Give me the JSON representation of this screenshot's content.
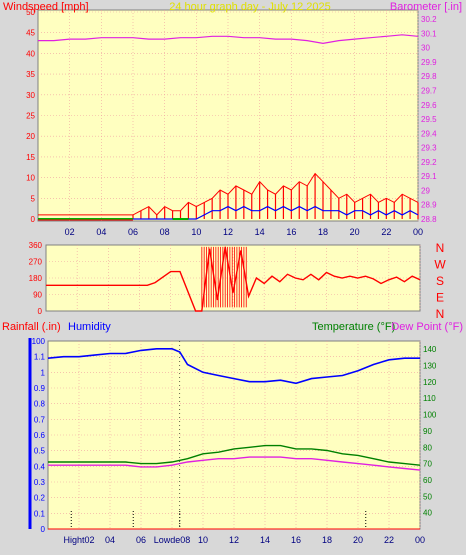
{
  "colors": {
    "frame": "#d8d8d8",
    "plot_bg": "#ffffc0",
    "grid": "#f0a0a0",
    "wind": "#ff0000",
    "gust": "#ff0000",
    "wind_avg": "#0000ff",
    "calm": "#00b000",
    "barometer": "#e020e0",
    "direction": "#ff0000",
    "humidity": "#0000ff",
    "temperature": "#008000",
    "dewpoint": "#e020e0",
    "rain": "#ff0000",
    "title": "#e0e000",
    "label_red": "#ff0000",
    "label_green": "#008000",
    "label_magenta": "#e020e0",
    "label_blue": "#0000ff",
    "tick_text": "#000080"
  },
  "chart_data": [
    {
      "type": "line",
      "id": "wind_barometer",
      "title": "24 hour graph day - July 12 2025",
      "ylabel_left": "Windspeed [mph]",
      "ylabel_right": "Barometer [.in]",
      "y_left_ticks": [
        "0",
        "5",
        "10",
        "15",
        "20",
        "25",
        "30",
        "35",
        "40",
        "45",
        "50"
      ],
      "y_right_ticks": [
        "28.8",
        "28.9",
        "29",
        "29.1",
        "29.2",
        "29.3",
        "29.4",
        "29.5",
        "29.6",
        "29.7",
        "29.8",
        "29.9",
        "30",
        "30.1",
        "30.2"
      ],
      "ylim_left": [
        0,
        50
      ],
      "ylim_right": [
        28.8,
        30.25
      ],
      "x_ticks": [
        "02",
        "04",
        "06",
        "08",
        "10",
        "12",
        "14",
        "16",
        "18",
        "20",
        "22",
        "00"
      ],
      "series": [
        {
          "key": "barometer",
          "axis": "right",
          "x": [
            0,
            1,
            2,
            3,
            4,
            5,
            6,
            7,
            8,
            9,
            10,
            11,
            12,
            13,
            14,
            15,
            16,
            17,
            18,
            19,
            20,
            21,
            22,
            23,
            24
          ],
          "values": [
            30.05,
            30.05,
            30.06,
            30.06,
            30.07,
            30.07,
            30.07,
            30.06,
            30.06,
            30.07,
            30.07,
            30.08,
            30.08,
            30.07,
            30.07,
            30.06,
            30.06,
            30.05,
            30.03,
            30.05,
            30.06,
            30.07,
            30.08,
            30.09,
            30.08
          ]
        },
        {
          "key": "gust",
          "axis": "left",
          "x": [
            0,
            6,
            6.5,
            7,
            7.5,
            8,
            8.5,
            9,
            9.5,
            10,
            10.5,
            11,
            11.5,
            12,
            12.5,
            13,
            13.5,
            14,
            14.5,
            15,
            15.5,
            16,
            16.5,
            17,
            17.5,
            18,
            18.5,
            19,
            19.5,
            20,
            20.5,
            21,
            21.5,
            22,
            22.5,
            23,
            23.5,
            24
          ],
          "values": [
            1,
            1,
            2,
            3,
            1,
            3,
            2,
            2,
            4,
            3,
            4,
            5,
            7,
            6,
            8,
            7,
            6,
            9,
            7,
            6,
            8,
            7,
            9,
            8,
            11,
            9,
            7,
            5,
            6,
            4,
            5,
            6,
            4,
            5,
            4,
            6,
            5,
            4
          ]
        },
        {
          "key": "wind_avg",
          "axis": "left",
          "x": [
            0,
            10,
            10.5,
            11,
            11.5,
            12,
            12.5,
            13,
            13.5,
            14,
            14.5,
            15,
            15.5,
            16,
            16.5,
            17,
            17.5,
            18,
            18.5,
            19,
            19.5,
            20,
            20.5,
            21,
            21.5,
            22,
            22.5,
            23,
            23.5,
            24
          ],
          "values": [
            0,
            0,
            1,
            2,
            2,
            3,
            2,
            3,
            2,
            2,
            3,
            2,
            3,
            2,
            3,
            2,
            3,
            2,
            2,
            2,
            1,
            2,
            2,
            1,
            2,
            1,
            2,
            1,
            2,
            1
          ],
          "calm_segments": [
            [
              0,
              6
            ],
            [
              8.5,
              9.5
            ]
          ]
        }
      ]
    },
    {
      "type": "line",
      "id": "wind_direction",
      "y_ticks": [
        "0",
        "90",
        "180",
        "270",
        "360"
      ],
      "ylim": [
        0,
        360
      ],
      "compass_labels": [
        "N",
        "W",
        "S",
        "E",
        "N"
      ],
      "series": [
        {
          "key": "direction",
          "x": [
            0,
            6.5,
            7,
            8,
            8.6,
            9.6,
            10,
            10.5,
            11,
            11.5,
            12,
            12.5,
            13,
            13.5,
            14,
            14.5,
            15,
            15.5,
            16,
            16.5,
            17,
            17.5,
            18,
            18.5,
            19,
            19.5,
            20,
            20.5,
            21,
            21.5,
            22,
            22.5,
            23,
            23.5,
            24
          ],
          "values": [
            140,
            140,
            155,
            215,
            215,
            0,
            0,
            340,
            60,
            350,
            100,
            330,
            80,
            180,
            150,
            190,
            160,
            200,
            180,
            170,
            200,
            170,
            210,
            190,
            180,
            190,
            180,
            190,
            175,
            150,
            170,
            185,
            160,
            190,
            170
          ]
        }
      ]
    },
    {
      "type": "line",
      "id": "temp_humidity_rain",
      "ylabel_left_1": "Rainfall (.in)",
      "ylabel_left_2": "Humidity",
      "ylabel_right_1": "Temperature (°F)",
      "ylabel_right_2": "Dew Point (°F)",
      "y_left_ticks": [
        "0",
        "0.1",
        "0.2",
        "0.3",
        "0.4",
        "0.5",
        "0.6",
        "0.7",
        "0.8",
        "0.9",
        "1",
        "1.1"
      ],
      "y_left_top_tick": "100",
      "y_right_ticks": [
        "40",
        "50",
        "60",
        "70",
        "80",
        "90",
        "100",
        "110",
        "120",
        "130",
        "140"
      ],
      "ylim_left": [
        0,
        1.2
      ],
      "ylim_right": [
        30,
        145
      ],
      "x_ticks": [
        "Hight02",
        "04",
        "06",
        "Lowde08",
        "10",
        "12",
        "14",
        "16",
        "18",
        "20",
        "22",
        "00"
      ],
      "markers": {
        "high_x": 1.5,
        "low_x": 8.5,
        "dotted_x": [
          1.5,
          5.5,
          8.5,
          20.5
        ]
      },
      "series": [
        {
          "key": "humidity",
          "axis": "left",
          "x": [
            0,
            1,
            2,
            3,
            4,
            5,
            6,
            7,
            8,
            8.5,
            9,
            10,
            11,
            12,
            13,
            14,
            15,
            16,
            17,
            18,
            19,
            20,
            21,
            22,
            23,
            24
          ],
          "values": [
            1.09,
            1.1,
            1.1,
            1.11,
            1.12,
            1.12,
            1.14,
            1.15,
            1.15,
            1.13,
            1.05,
            1.0,
            0.98,
            0.96,
            0.94,
            0.94,
            0.95,
            0.93,
            0.96,
            0.97,
            0.98,
            1.01,
            1.05,
            1.08,
            1.09,
            1.09
          ]
        },
        {
          "key": "temperature",
          "axis": "right",
          "x": [
            0,
            1,
            2,
            3,
            4,
            5,
            6,
            7,
            8,
            9,
            10,
            11,
            12,
            13,
            14,
            15,
            16,
            17,
            18,
            19,
            20,
            21,
            22,
            23,
            24
          ],
          "values": [
            71,
            71,
            71,
            71,
            71,
            71,
            70,
            70,
            71,
            73,
            76,
            77,
            79,
            80,
            81,
            81,
            79,
            79,
            78,
            76,
            75,
            73,
            71,
            70,
            69
          ]
        },
        {
          "key": "dewpoint",
          "axis": "right",
          "x": [
            0,
            1,
            2,
            3,
            4,
            5,
            6,
            7,
            8,
            9,
            10,
            11,
            12,
            13,
            14,
            15,
            16,
            17,
            18,
            19,
            20,
            21,
            22,
            23,
            24
          ],
          "values": [
            69,
            69,
            69,
            69,
            69,
            69,
            68,
            68,
            69,
            71,
            72,
            73,
            73,
            74,
            74,
            74,
            73,
            73,
            72,
            71,
            70,
            69,
            68,
            67,
            66
          ]
        },
        {
          "key": "rain",
          "axis": "left",
          "x": [
            0,
            24
          ],
          "values": [
            0,
            0
          ]
        }
      ]
    }
  ]
}
